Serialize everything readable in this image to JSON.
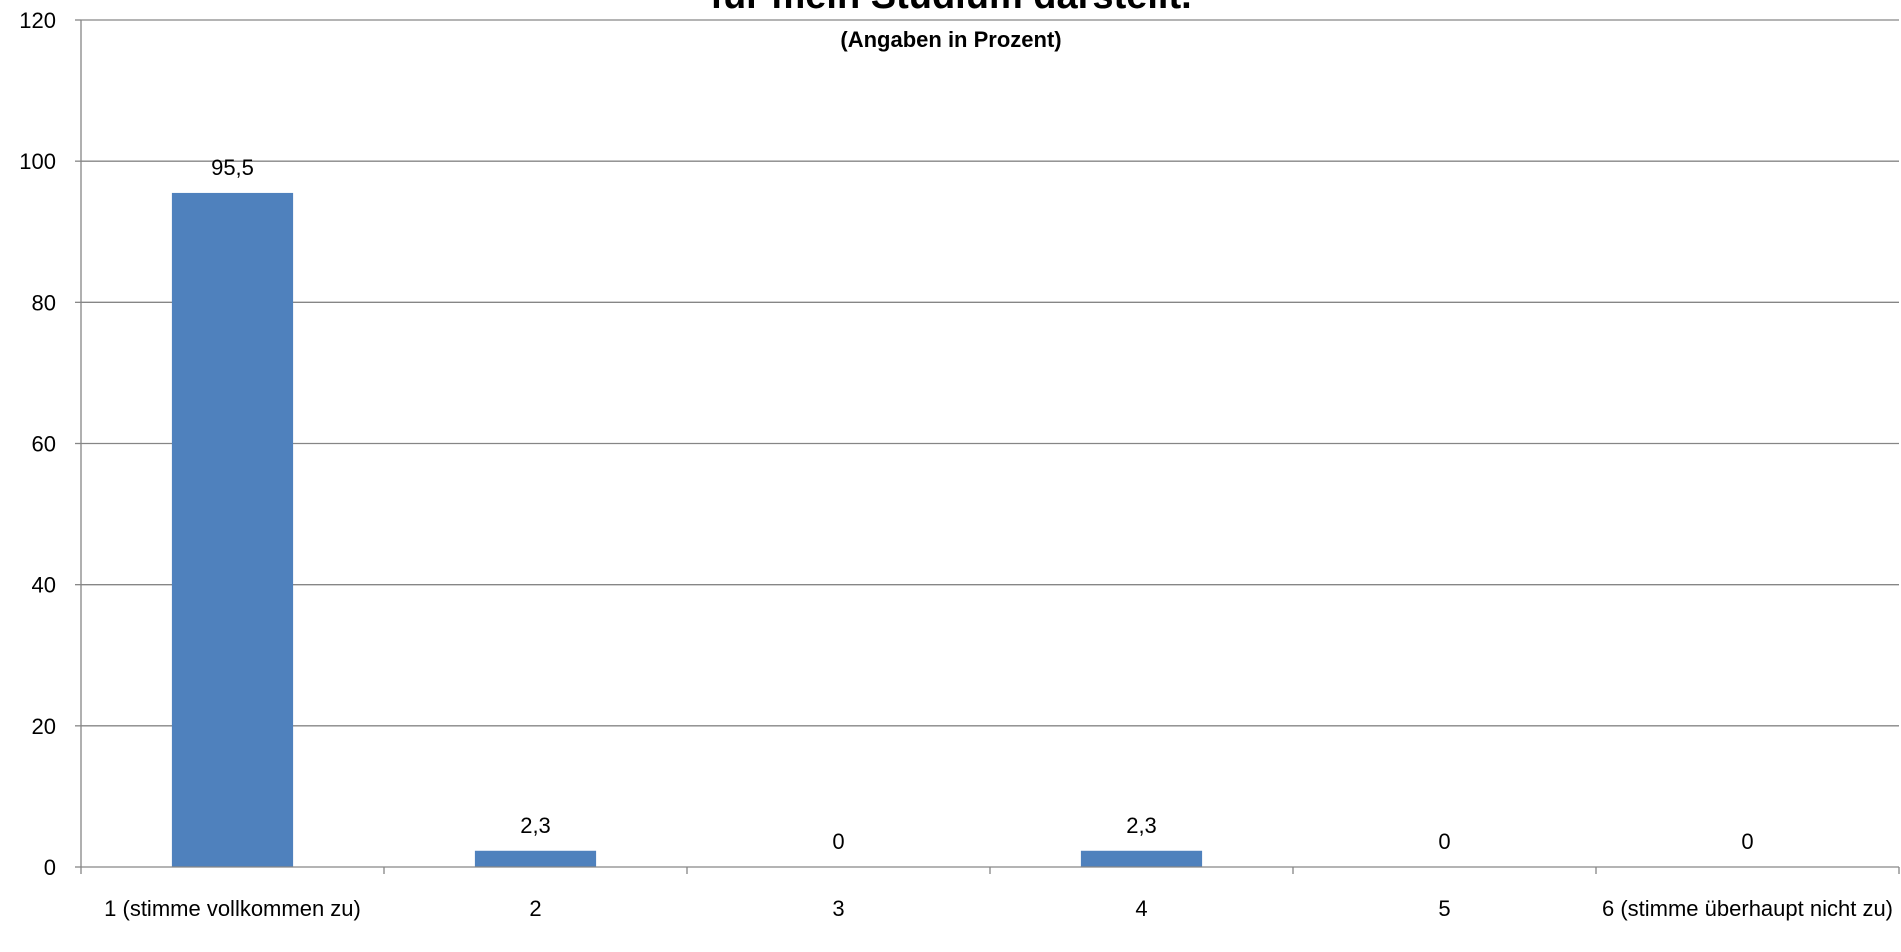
{
  "chart_data": {
    "type": "bar",
    "title": "für mein Studium darstellt.",
    "subtitle": "(Angaben in Prozent)",
    "categories": [
      "1 (stimme vollkommen zu)",
      "2",
      "3",
      "4",
      "5",
      "6 (stimme überhaupt nicht zu)"
    ],
    "values": [
      95.5,
      2.3,
      0,
      2.3,
      0,
      0
    ],
    "value_labels": [
      "95,5",
      "2,3",
      "0",
      "2,3",
      "0",
      "0"
    ],
    "ylim": [
      0,
      120
    ],
    "yticks": [
      0,
      20,
      40,
      60,
      80,
      100,
      120
    ],
    "xlabel": "",
    "ylabel": "",
    "grid": true,
    "legend": "none",
    "colors": {
      "bar": "#4F81BD",
      "grid": "#868686",
      "axis": "#868686"
    }
  }
}
